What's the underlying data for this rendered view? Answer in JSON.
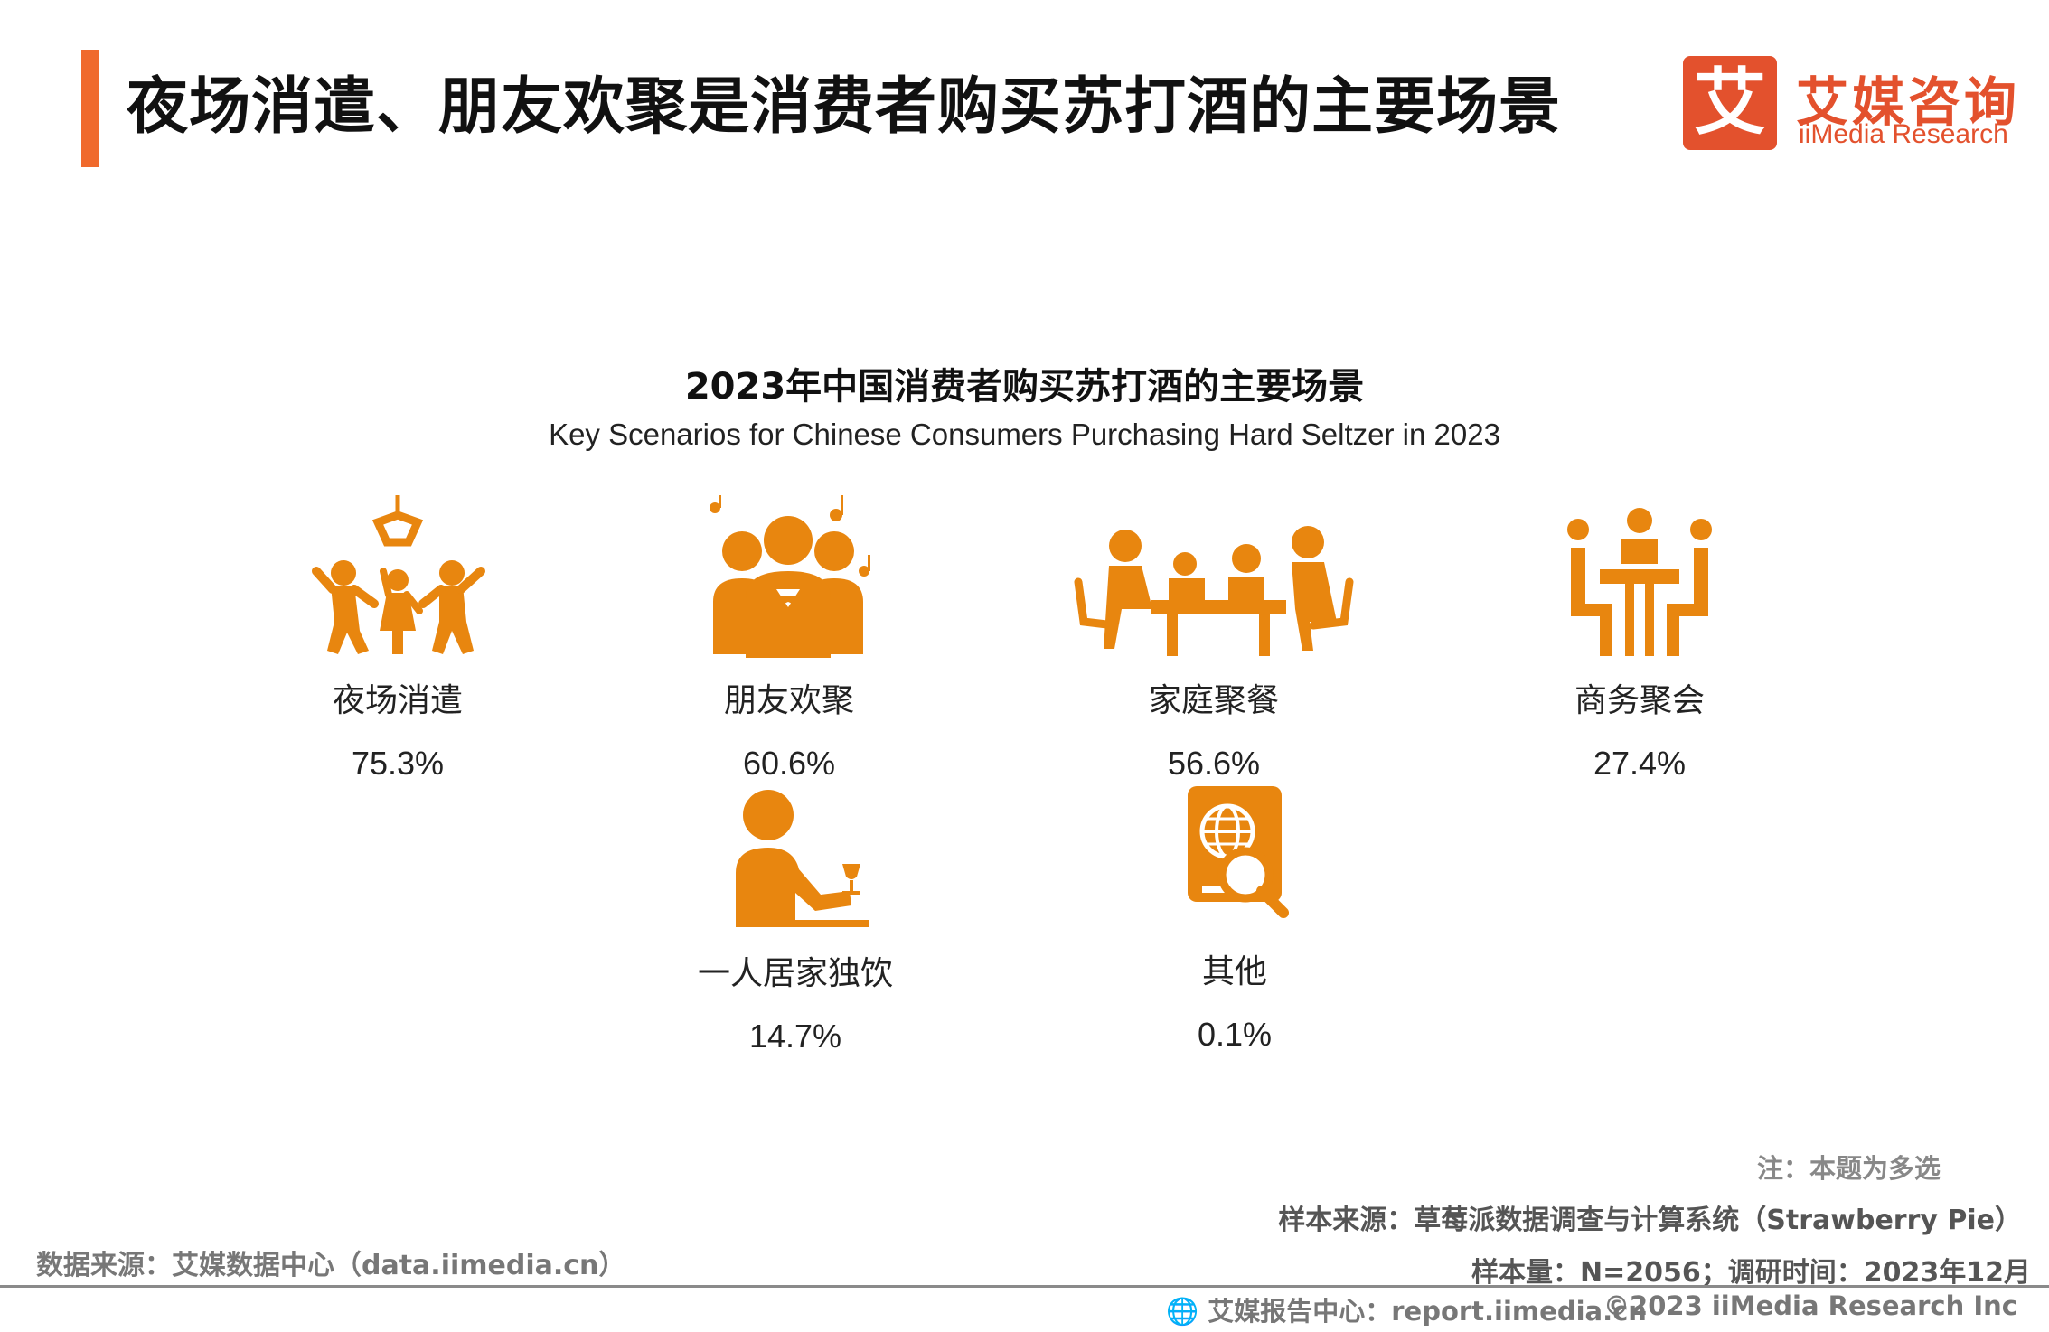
{
  "header": {
    "title": "夜场消遣、朋友欢聚是消费者购买苏打酒的主要场景",
    "accent_color": "#f06a2d"
  },
  "logo": {
    "mark_char": "艾",
    "name_cn": "艾媒咨询",
    "name_en": "iiMedia Research",
    "color": "#e3512d"
  },
  "chart_data": {
    "type": "table",
    "title": "2023年中国消费者购买苏打酒的主要场景",
    "subtitle": "Key Scenarios for Chinese Consumers Purchasing Hard Seltzer in 2023",
    "unit": "%",
    "icon_color": "#e8860f",
    "categories": [
      "夜场消遣",
      "朋友欢聚",
      "家庭聚餐",
      "商务聚会",
      "一人居家独饮",
      "其他"
    ],
    "values": [
      75.3,
      60.6,
      56.6,
      27.4,
      14.7,
      0.1
    ],
    "items": [
      {
        "label": "夜场消遣",
        "value": "75.3%",
        "icon": "nightclub-dancers-icon"
      },
      {
        "label": "朋友欢聚",
        "value": "60.6%",
        "icon": "friends-gathering-icon"
      },
      {
        "label": "家庭聚餐",
        "value": "56.6%",
        "icon": "family-dinner-icon"
      },
      {
        "label": "商务聚会",
        "value": "27.4%",
        "icon": "business-meeting-icon"
      },
      {
        "label": "一人居家独饮",
        "value": "14.7%",
        "icon": "solo-drinking-icon"
      },
      {
        "label": "其他",
        "value": "0.1%",
        "icon": "globe-search-icon"
      }
    ]
  },
  "notes": {
    "note": "注：本题为多选",
    "sample_source": "样本来源：草莓派数据调查与计算系统（Strawberry Pie）",
    "sample_size": "样本量：N=2056；调研时间：2023年12月",
    "data_source": "数据来源：艾媒数据中心（data.iimedia.cn）"
  },
  "footer": {
    "report_center": "艾媒报告中心：report.iimedia.cn",
    "copyright": "©2023  iiMedia Research  Inc"
  }
}
